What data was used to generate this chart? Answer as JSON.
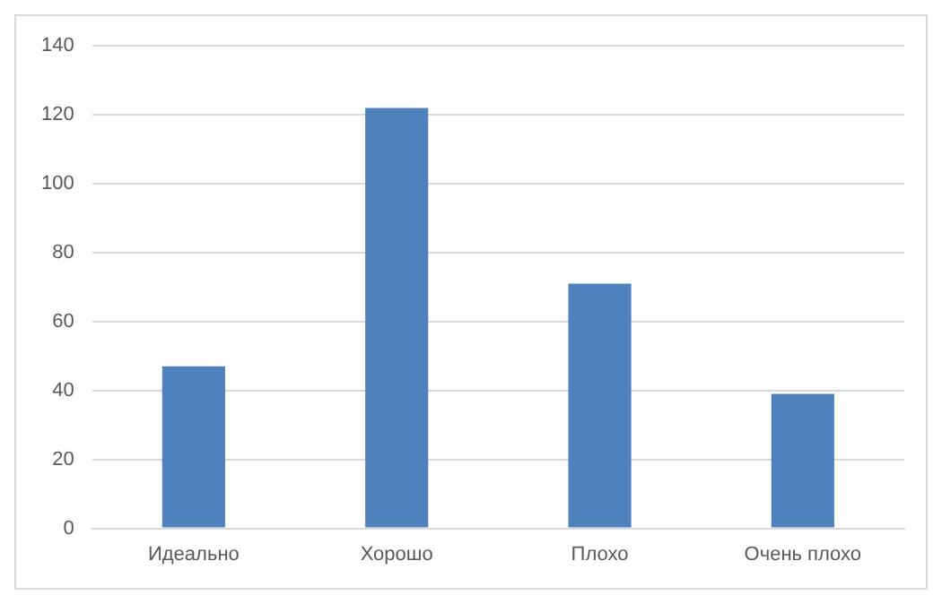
{
  "chart_data": {
    "type": "bar",
    "categories": [
      "Идеально",
      "Хорошо",
      "Плохо",
      "Очень плохо"
    ],
    "values": [
      47,
      122,
      71,
      39
    ],
    "color": "#4f81bd",
    "ylim": [
      0,
      140
    ],
    "yticks": [
      0,
      20,
      40,
      60,
      80,
      100,
      120,
      140
    ],
    "grid": "y",
    "legend": false
  }
}
